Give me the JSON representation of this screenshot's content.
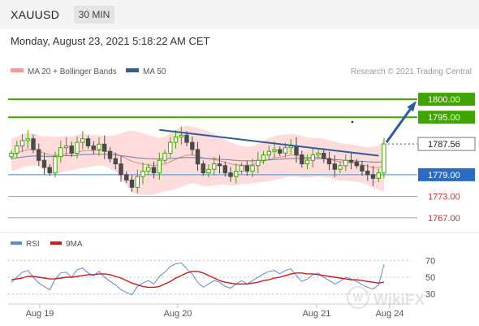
{
  "header": {
    "symbol": "XAUUSD",
    "timeframe": "30 MIN",
    "datetime": "Monday, August 23, 2021 5:18:22 AM CET"
  },
  "legend": {
    "bollinger": "MA 20 + Bollinger Bands",
    "ma50": "MA 50",
    "rsi": "RSI",
    "ma9": "9MA"
  },
  "watermark": {
    "research": "Research © 2021 Trading Central",
    "logo": "WikiFX"
  },
  "colors": {
    "support_resistance": "#3fa300",
    "current_line": "#6a9fd6",
    "lower_level": "#d2322d",
    "trend": "#2f5d9a",
    "ma20": "#e08a8a",
    "ma50": "#6b7fa8",
    "band_fill": "#ffd6d6",
    "candle_up": "#3fa300",
    "candle_down": "#4a4a4a",
    "rsi_line": "#5b8ad6",
    "rsi_ma": "#d21a1a"
  },
  "chart_data": [
    {
      "type": "candlestick",
      "title": "",
      "x_ticks": [
        "Aug 19",
        "Aug 20",
        "Aug 21",
        "Aug 24"
      ],
      "ylim": [
        1762,
        1805
      ],
      "levels": [
        {
          "label": "1800.00",
          "value": 1800.0,
          "kind": "resistance"
        },
        {
          "label": "1795.00",
          "value": 1795.0,
          "kind": "resistance"
        },
        {
          "label": "1787.56",
          "value": 1787.56,
          "kind": "last"
        },
        {
          "label": "1779.00",
          "value": 1779.0,
          "kind": "pivot"
        },
        {
          "label": "1773.00",
          "value": 1773.0,
          "kind": "support"
        },
        {
          "label": "1767.00",
          "value": 1767.0,
          "kind": "support"
        }
      ],
      "trendline": {
        "start": 1791.5,
        "end": 1784.3
      },
      "projection": {
        "from": 1788.0,
        "to": 1799.0
      },
      "closes": [
        1785.0,
        1787.0,
        1788.5,
        1789.0,
        1786.0,
        1783.0,
        1781.0,
        1779.5,
        1784.0,
        1786.5,
        1787.0,
        1785.0,
        1788.0,
        1789.0,
        1787.0,
        1786.0,
        1787.5,
        1785.5,
        1783.5,
        1782.0,
        1779.0,
        1777.5,
        1775.5,
        1778.5,
        1780.0,
        1781.0,
        1779.5,
        1783.0,
        1785.0,
        1788.0,
        1789.5,
        1790.0,
        1788.0,
        1786.0,
        1782.0,
        1779.5,
        1780.5,
        1782.0,
        1781.5,
        1779.5,
        1778.5,
        1780.0,
        1781.5,
        1780.0,
        1781.5,
        1783.0,
        1784.5,
        1785.5,
        1786.0,
        1785.0,
        1786.5,
        1787.0,
        1784.5,
        1782.0,
        1783.0,
        1784.5,
        1785.0,
        1783.5,
        1782.0,
        1780.5,
        1781.5,
        1783.0,
        1782.5,
        1781.5,
        1780.0,
        1779.0,
        1778.0,
        1779.5,
        1787.56
      ],
      "ma20": [
        1784.5,
        1785.0,
        1785.6,
        1786.0,
        1786.0,
        1785.6,
        1785.0,
        1784.4,
        1784.4,
        1784.6,
        1784.9,
        1784.9,
        1785.3,
        1785.6,
        1785.7,
        1785.7,
        1785.8,
        1785.6,
        1785.3,
        1784.9,
        1784.2,
        1783.5,
        1782.7,
        1782.3,
        1782.0,
        1781.7,
        1781.5,
        1781.6,
        1782.0,
        1782.6,
        1783.3,
        1784.0,
        1784.4,
        1784.5,
        1784.2,
        1783.7,
        1783.4,
        1783.2,
        1782.9,
        1782.5,
        1782.0,
        1781.7,
        1781.7,
        1781.6,
        1781.8,
        1782.2,
        1782.7,
        1783.2,
        1783.7,
        1783.9,
        1784.2,
        1784.5,
        1784.4,
        1784.0,
        1783.8,
        1783.8,
        1783.9,
        1783.7,
        1783.4,
        1782.9,
        1782.6,
        1782.5,
        1782.3,
        1782.1,
        1781.8,
        1781.4,
        1781.0,
        1780.9,
        1781.6
      ],
      "ma50": [
        1783.5,
        1783.7,
        1783.9,
        1784.1,
        1784.2,
        1784.2,
        1784.1,
        1784.0,
        1784.1,
        1784.2,
        1784.3,
        1784.3,
        1784.4,
        1784.6,
        1784.6,
        1784.7,
        1784.7,
        1784.7,
        1784.6,
        1784.5,
        1784.3,
        1784.1,
        1783.9,
        1783.7,
        1783.6,
        1783.5,
        1783.4,
        1783.4,
        1783.4,
        1783.5,
        1783.6,
        1783.7,
        1783.8,
        1783.8,
        1783.7,
        1783.6,
        1783.5,
        1783.4,
        1783.3,
        1783.2,
        1783.1,
        1783.0,
        1782.9,
        1782.9,
        1782.9,
        1783.0,
        1783.0,
        1783.1,
        1783.2,
        1783.3,
        1783.4,
        1783.5,
        1783.5,
        1783.5,
        1783.5,
        1783.5,
        1783.5,
        1783.4,
        1783.3,
        1783.2,
        1783.1,
        1783.0,
        1782.9,
        1782.8,
        1782.7,
        1782.6,
        1782.5,
        1782.5,
        1782.6
      ],
      "band_upper": [
        1789.0,
        1789.6,
        1790.2,
        1790.6,
        1790.5,
        1790.0,
        1789.6,
        1789.8,
        1789.6,
        1789.6,
        1789.8,
        1789.6,
        1790.0,
        1790.4,
        1790.3,
        1790.0,
        1790.0,
        1789.8,
        1789.8,
        1790.0,
        1790.6,
        1791.0,
        1791.3,
        1791.0,
        1790.6,
        1790.0,
        1789.6,
        1789.2,
        1789.6,
        1790.6,
        1791.6,
        1792.4,
        1792.6,
        1792.4,
        1792.0,
        1791.6,
        1791.0,
        1790.4,
        1789.6,
        1788.8,
        1788.0,
        1787.4,
        1787.0,
        1786.8,
        1787.0,
        1787.6,
        1788.4,
        1789.2,
        1789.8,
        1790.0,
        1790.2,
        1790.4,
        1790.2,
        1789.8,
        1789.4,
        1789.2,
        1789.2,
        1789.0,
        1788.6,
        1788.2,
        1787.8,
        1787.6,
        1787.4,
        1787.2,
        1786.8,
        1786.6,
        1786.8,
        1787.0,
        1789.0
      ],
      "band_lower": [
        1780.0,
        1780.4,
        1781.0,
        1781.4,
        1781.5,
        1781.2,
        1780.4,
        1779.0,
        1779.2,
        1779.6,
        1780.0,
        1780.2,
        1780.6,
        1780.8,
        1781.1,
        1781.4,
        1781.6,
        1781.4,
        1780.8,
        1779.8,
        1777.8,
        1776.0,
        1774.1,
        1773.6,
        1773.4,
        1773.4,
        1773.4,
        1774.0,
        1774.4,
        1774.6,
        1775.0,
        1775.6,
        1776.2,
        1776.6,
        1776.4,
        1775.8,
        1775.8,
        1776.0,
        1776.2,
        1776.2,
        1776.0,
        1776.0,
        1776.4,
        1776.4,
        1776.6,
        1776.8,
        1777.0,
        1777.2,
        1777.6,
        1777.8,
        1778.2,
        1778.6,
        1778.6,
        1778.2,
        1778.2,
        1778.4,
        1778.6,
        1778.4,
        1778.2,
        1777.6,
        1777.4,
        1777.4,
        1777.2,
        1777.0,
        1776.8,
        1776.2,
        1775.2,
        1774.8,
        1774.2
      ]
    },
    {
      "type": "line",
      "title": "",
      "ylim": [
        20,
        80
      ],
      "levels": [
        70,
        50,
        30
      ],
      "series": [
        {
          "name": "RSI",
          "values": [
            44,
            50,
            56,
            58,
            50,
            43,
            39,
            35,
            48,
            55,
            56,
            50,
            59,
            61,
            55,
            52,
            57,
            50,
            45,
            41,
            35,
            32,
            29,
            39,
            43,
            46,
            42,
            51,
            56,
            63,
            66,
            67,
            60,
            54,
            44,
            38,
            42,
            46,
            44,
            39,
            37,
            42,
            46,
            42,
            46,
            50,
            54,
            57,
            58,
            54,
            58,
            60,
            52,
            45,
            48,
            53,
            55,
            50,
            46,
            42,
            45,
            50,
            48,
            45,
            41,
            38,
            36,
            41,
            65
          ]
        },
        {
          "name": "9MA",
          "values": [
            47,
            48,
            49,
            51,
            51,
            50,
            49,
            48,
            48,
            49,
            50,
            50,
            51,
            52,
            53,
            53,
            54,
            54,
            53,
            51,
            49,
            46,
            43,
            41,
            39,
            38,
            38,
            39,
            42,
            45,
            49,
            52,
            55,
            57,
            57,
            55,
            52,
            49,
            46,
            44,
            43,
            42,
            42,
            42,
            43,
            44,
            46,
            47,
            49,
            50,
            52,
            54,
            55,
            55,
            54,
            54,
            53,
            52,
            51,
            50,
            49,
            48,
            47,
            47,
            46,
            45,
            44,
            43,
            44
          ]
        }
      ]
    }
  ]
}
